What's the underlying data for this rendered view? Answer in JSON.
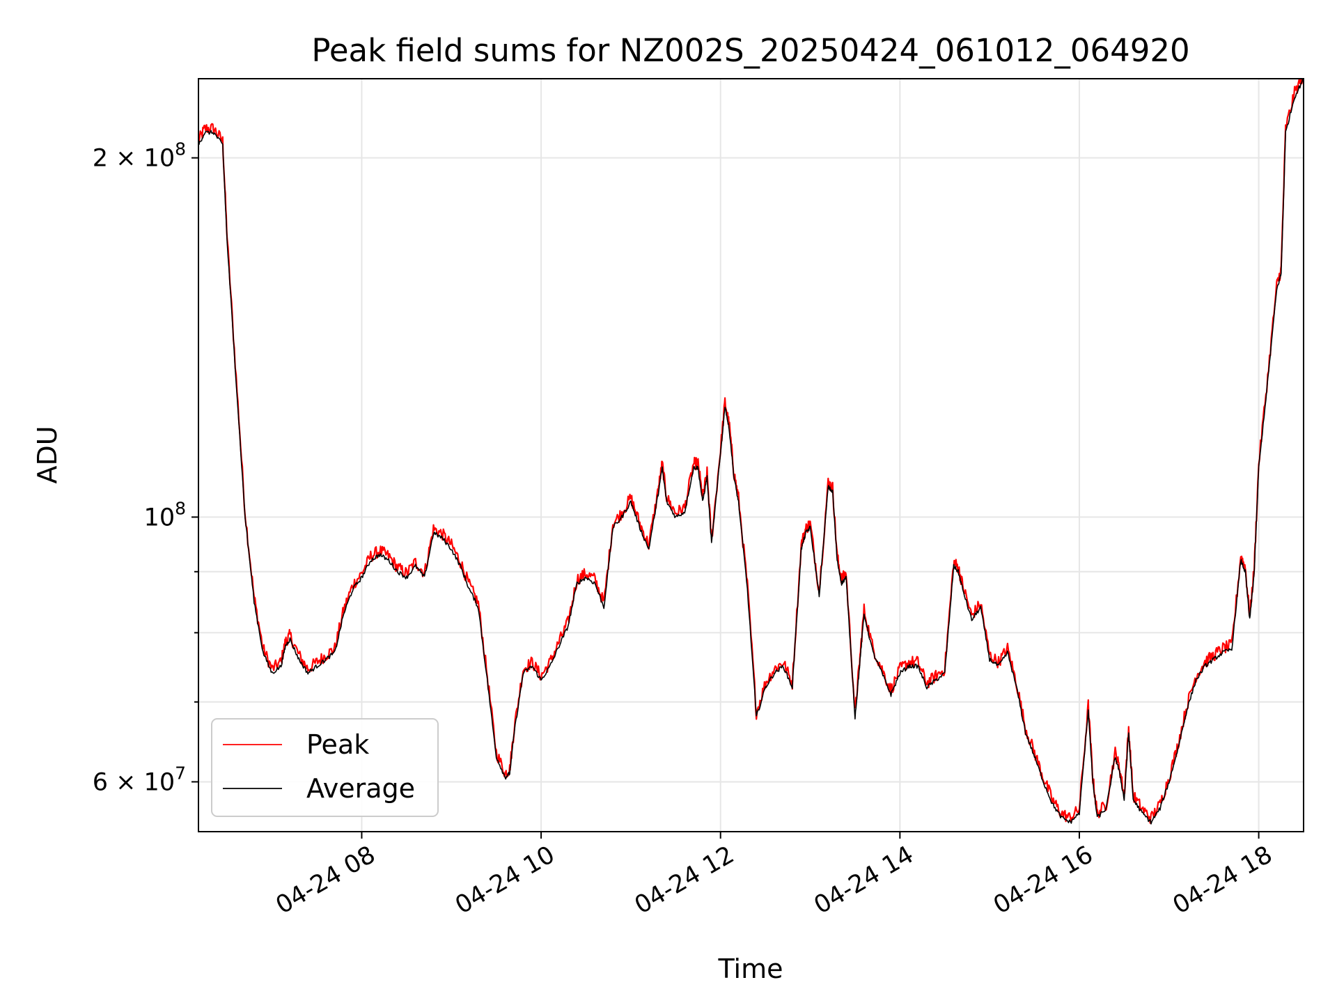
{
  "chart_data": {
    "type": "line",
    "title": "Peak field sums for NZ002S_20250424_061012_064920",
    "xlabel": "Time",
    "ylabel": "ADU",
    "x_unit": "hour of day 2025-04-24",
    "xlim": [
      6.18,
      18.5
    ],
    "ylim": [
      54500000.0,
      233000000.0
    ],
    "yscale": "log",
    "grid": true,
    "legend_position": "lower-left",
    "x_ticks": [
      {
        "value": 8,
        "label": "04-24 08"
      },
      {
        "value": 10,
        "label": "04-24 10"
      },
      {
        "value": 12,
        "label": "04-24 12"
      },
      {
        "value": 14,
        "label": "04-24 14"
      },
      {
        "value": 16,
        "label": "04-24 16"
      },
      {
        "value": 18,
        "label": "04-24 18"
      }
    ],
    "y_major_ticks": [
      {
        "value": 60000000,
        "base": "6",
        "times": "×",
        "pow": "10",
        "exp": "7"
      },
      {
        "value": 100000000,
        "base": "",
        "times": "",
        "pow": "10",
        "exp": "8"
      },
      {
        "value": 200000000,
        "base": "2",
        "times": "×",
        "pow": "10",
        "exp": "8"
      }
    ],
    "y_minor_ticks": [
      70000000,
      80000000,
      90000000
    ],
    "series": [
      {
        "name": "Peak",
        "color": "#ff0000",
        "offset_ratio": 1.008,
        "noise": 0.012
      },
      {
        "name": "Average",
        "color": "#000000",
        "offset_ratio": 1.0,
        "noise": 0.004
      }
    ],
    "x": [
      6.18,
      6.25,
      6.35,
      6.45,
      6.5,
      6.6,
      6.7,
      6.8,
      6.9,
      7.0,
      7.1,
      7.15,
      7.2,
      7.3,
      7.4,
      7.5,
      7.6,
      7.7,
      7.8,
      7.9,
      8.0,
      8.1,
      8.2,
      8.3,
      8.4,
      8.5,
      8.6,
      8.7,
      8.8,
      8.9,
      9.0,
      9.1,
      9.2,
      9.3,
      9.4,
      9.5,
      9.6,
      9.65,
      9.7,
      9.8,
      9.9,
      10.0,
      10.1,
      10.2,
      10.3,
      10.4,
      10.5,
      10.6,
      10.7,
      10.8,
      10.9,
      11.0,
      11.1,
      11.2,
      11.3,
      11.35,
      11.4,
      11.5,
      11.6,
      11.7,
      11.75,
      11.8,
      11.85,
      11.9,
      12.0,
      12.05,
      12.1,
      12.15,
      12.2,
      12.3,
      12.4,
      12.5,
      12.6,
      12.7,
      12.8,
      12.9,
      12.95,
      13.0,
      13.1,
      13.2,
      13.25,
      13.3,
      13.35,
      13.4,
      13.5,
      13.55,
      13.6,
      13.7,
      13.8,
      13.9,
      14.0,
      14.1,
      14.2,
      14.3,
      14.4,
      14.5,
      14.6,
      14.65,
      14.7,
      14.8,
      14.9,
      15.0,
      15.1,
      15.2,
      15.3,
      15.4,
      15.5,
      15.6,
      15.7,
      15.8,
      15.9,
      16.0,
      16.1,
      16.15,
      16.2,
      16.3,
      16.4,
      16.45,
      16.5,
      16.55,
      16.6,
      16.7,
      16.8,
      16.9,
      17.0,
      17.1,
      17.2,
      17.3,
      17.4,
      17.5,
      17.6,
      17.7,
      17.8,
      17.85,
      17.9,
      17.95,
      18.0,
      18.1,
      18.2,
      18.25,
      18.3,
      18.4,
      18.5
    ],
    "average": [
      205000000,
      210000000,
      210000000,
      205000000,
      170000000,
      130000000,
      100000000,
      85000000,
      77000000,
      74000000,
      75000000,
      78000000,
      79000000,
      76000000,
      74000000,
      75000000,
      76000000,
      77000000,
      83000000,
      87000000,
      89000000,
      92000000,
      93000000,
      92000000,
      90000000,
      89000000,
      91000000,
      89000000,
      97000000,
      96000000,
      94000000,
      91000000,
      87000000,
      84000000,
      73000000,
      63000000,
      60500000,
      61000000,
      66000000,
      74000000,
      75000000,
      73000000,
      75000000,
      78000000,
      81000000,
      88000000,
      89000000,
      88000000,
      84000000,
      98000000,
      100000000,
      103000000,
      98000000,
      94000000,
      104000000,
      110000000,
      103000000,
      100000000,
      101000000,
      110000000,
      110000000,
      103000000,
      108000000,
      95000000,
      113000000,
      124000000,
      118000000,
      108000000,
      103000000,
      87000000,
      68000000,
      72000000,
      74000000,
      75000000,
      72000000,
      94000000,
      97000000,
      98000000,
      86000000,
      106000000,
      105000000,
      92000000,
      88000000,
      89000000,
      68000000,
      75000000,
      83000000,
      77000000,
      74000000,
      71000000,
      74000000,
      75000000,
      75000000,
      72000000,
      73000000,
      74000000,
      91000000,
      90000000,
      87000000,
      82000000,
      84000000,
      76000000,
      75000000,
      77000000,
      72000000,
      66000000,
      63000000,
      60000000,
      57500000,
      56000000,
      55500000,
      56500000,
      69000000,
      60000000,
      56000000,
      57000000,
      63000000,
      61000000,
      58000000,
      66000000,
      58000000,
      56500000,
      55500000,
      57000000,
      60000000,
      64000000,
      69000000,
      73000000,
      75000000,
      76000000,
      77000000,
      77500000,
      92000000,
      90000000,
      82000000,
      90000000,
      110000000,
      130000000,
      155000000,
      160000000,
      210000000,
      225000000,
      233000000
    ]
  },
  "legend": {
    "items": [
      {
        "label": "Peak",
        "color": "#ff0000"
      },
      {
        "label": "Average",
        "color": "#000000"
      }
    ]
  }
}
